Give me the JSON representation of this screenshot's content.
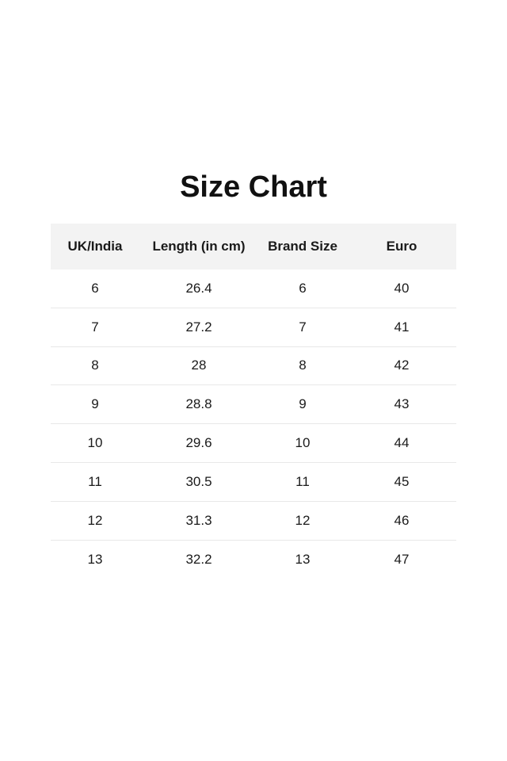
{
  "title": "Size Chart",
  "table": {
    "headers": [
      "UK/India",
      "Length (in cm)",
      "Brand Size",
      "Euro"
    ],
    "rows": [
      [
        "6",
        "26.4",
        "6",
        "40"
      ],
      [
        "7",
        "27.2",
        "7",
        "41"
      ],
      [
        "8",
        "28",
        "8",
        "42"
      ],
      [
        "9",
        "28.8",
        "9",
        "43"
      ],
      [
        "10",
        "29.6",
        "10",
        "44"
      ],
      [
        "11",
        "30.5",
        "11",
        "45"
      ],
      [
        "12",
        "31.3",
        "12",
        "46"
      ],
      [
        "13",
        "32.2",
        "13",
        "47"
      ]
    ]
  }
}
